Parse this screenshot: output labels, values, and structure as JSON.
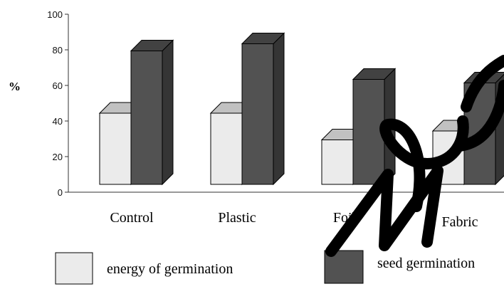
{
  "chart_data": {
    "type": "bar",
    "bar_style": "3d-clustered",
    "categories": [
      "Control",
      "Plastic",
      "Foil",
      "Fabric"
    ],
    "series": [
      {
        "name": "energy of germination",
        "values": [
          40,
          40,
          25,
          30
        ],
        "color": "#ebebeb"
      },
      {
        "name": "seed germination",
        "values": [
          75,
          79,
          59,
          57
        ],
        "color": "#525252"
      }
    ],
    "title": "",
    "xlabel": "",
    "ylabel": "%",
    "ylim": [
      0,
      100
    ],
    "yticks": [
      0,
      20,
      40,
      60,
      80,
      100
    ],
    "grid": false,
    "legend_position": "bottom"
  },
  "watermark": {
    "present": true,
    "color": "#000000",
    "description": "handwritten Cyrillic-style watermark overlay"
  }
}
